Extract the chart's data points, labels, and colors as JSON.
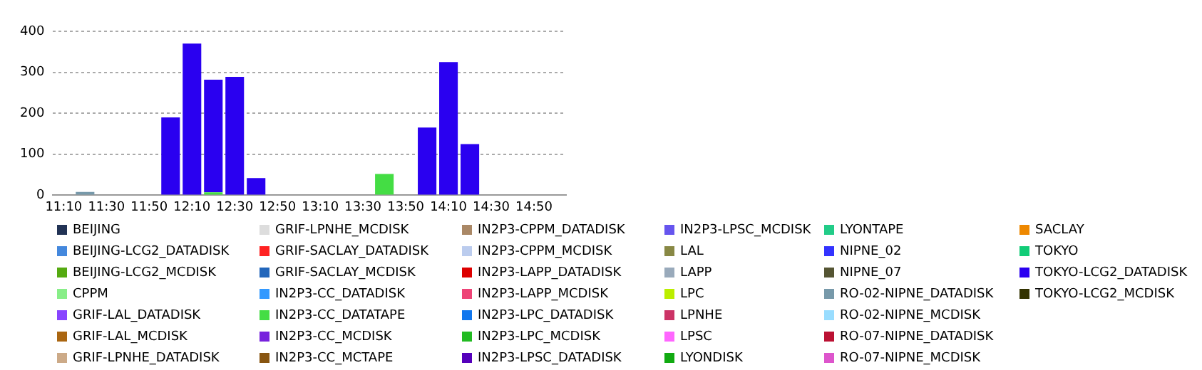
{
  "chart_data": {
    "type": "bar",
    "stacked": true,
    "grid": "y",
    "legend": "bottom",
    "categories": [
      "11:10",
      null,
      "11:30",
      null,
      "11:50",
      null,
      "12:10",
      null,
      "12:30",
      null,
      "12:50",
      null,
      "13:10",
      null,
      "13:30",
      null,
      "13:50",
      null,
      "14:10",
      null,
      "14:30",
      null,
      "14:50",
      null
    ],
    "ylim": [
      0,
      400
    ],
    "yticks": [
      0,
      100,
      200,
      300,
      400
    ],
    "series": [
      {
        "name": "BEIJING",
        "color": "#223355",
        "values": [
          0,
          0,
          0,
          0,
          0,
          0,
          0,
          0,
          0,
          0,
          0,
          0,
          0,
          0,
          0,
          0,
          0,
          0,
          0,
          0,
          0,
          0,
          0,
          0
        ]
      },
      {
        "name": "BEIJING-LCG2_DATADISK",
        "color": "#4488dd",
        "values": [
          0,
          0,
          0,
          0,
          0,
          0,
          0,
          0,
          0,
          0,
          0,
          0,
          0,
          0,
          0,
          0,
          0,
          0,
          0,
          0,
          0,
          0,
          0,
          0
        ]
      },
      {
        "name": "BEIJING-LCG2_MCDISK",
        "color": "#55aa11",
        "values": [
          0,
          0,
          0,
          0,
          0,
          0,
          0,
          0,
          0,
          0,
          0,
          0,
          0,
          0,
          0,
          0,
          0,
          0,
          0,
          0,
          0,
          0,
          0,
          0
        ]
      },
      {
        "name": "CPPM",
        "color": "#88ee88",
        "values": [
          0,
          0,
          0,
          0,
          0,
          0,
          0,
          0,
          0,
          0,
          0,
          0,
          0,
          0,
          0,
          0,
          0,
          0,
          0,
          0,
          0,
          0,
          0,
          0
        ]
      },
      {
        "name": "GRIF-LAL_DATADISK",
        "color": "#8844ff",
        "values": [
          0,
          0,
          0,
          0,
          0,
          0,
          0,
          0,
          0,
          0,
          0,
          0,
          0,
          0,
          0,
          0,
          0,
          0,
          0,
          0,
          0,
          0,
          0,
          0
        ]
      },
      {
        "name": "GRIF-LAL_MCDISK",
        "color": "#aa6611",
        "values": [
          0,
          0,
          0,
          0,
          0,
          0,
          0,
          0,
          0,
          0,
          0,
          0,
          0,
          0,
          0,
          0,
          0,
          0,
          0,
          0,
          0,
          0,
          0,
          0
        ]
      },
      {
        "name": "GRIF-LPNHE_DATADISK",
        "color": "#ccaa88",
        "values": [
          0,
          0,
          0,
          0,
          0,
          0,
          0,
          0,
          0,
          0,
          0,
          0,
          0,
          0,
          0,
          0,
          0,
          0,
          0,
          0,
          0,
          0,
          0,
          0
        ]
      },
      {
        "name": "GRIF-LPNHE_MCDISK",
        "color": "#dddddd",
        "values": [
          0,
          0,
          0,
          0,
          0,
          0,
          0,
          0,
          0,
          0,
          0,
          0,
          0,
          0,
          0,
          0,
          0,
          0,
          0,
          0,
          0,
          0,
          0,
          0
        ]
      },
      {
        "name": "GRIF-SACLAY_DATADISK",
        "color": "#ff2222",
        "values": [
          0,
          0,
          0,
          0,
          0,
          0,
          0,
          0,
          0,
          0,
          0,
          0,
          0,
          0,
          0,
          0,
          0,
          0,
          0,
          0,
          0,
          0,
          0,
          0
        ]
      },
      {
        "name": "GRIF-SACLAY_MCDISK",
        "color": "#2266bb",
        "values": [
          0,
          0,
          0,
          0,
          0,
          0,
          0,
          0,
          0,
          0,
          0,
          0,
          0,
          0,
          0,
          0,
          0,
          0,
          0,
          0,
          0,
          0,
          0,
          0
        ]
      },
      {
        "name": "IN2P3-CC_DATADISK",
        "color": "#3399ff",
        "values": [
          0,
          0,
          0,
          0,
          0,
          0,
          0,
          0,
          0,
          0,
          0,
          0,
          0,
          0,
          0,
          0,
          0,
          0,
          0,
          0,
          0,
          0,
          0,
          0
        ]
      },
      {
        "name": "IN2P3-CC_DATATAPE",
        "color": "#44dd44",
        "values": [
          0,
          0,
          0,
          0,
          0,
          0,
          0,
          7,
          0,
          0,
          0,
          0,
          0,
          0,
          0,
          52,
          0,
          0,
          0,
          0,
          0,
          0,
          0,
          0
        ]
      },
      {
        "name": "IN2P3-CC_MCDISK",
        "color": "#7722dd",
        "values": [
          0,
          0,
          0,
          0,
          0,
          0,
          0,
          0,
          0,
          0,
          0,
          0,
          0,
          0,
          0,
          0,
          0,
          0,
          0,
          0,
          0,
          0,
          0,
          0
        ]
      },
      {
        "name": "IN2P3-CC_MCTAPE",
        "color": "#885511",
        "values": [
          0,
          0,
          0,
          0,
          0,
          0,
          0,
          0,
          0,
          0,
          0,
          0,
          0,
          0,
          0,
          0,
          0,
          0,
          0,
          0,
          0,
          0,
          0,
          0
        ]
      },
      {
        "name": "IN2P3-CPPM_DATADISK",
        "color": "#aa8866",
        "values": [
          0,
          0,
          0,
          0,
          0,
          0,
          0,
          0,
          0,
          0,
          0,
          0,
          0,
          0,
          0,
          0,
          0,
          0,
          0,
          0,
          0,
          0,
          0,
          0
        ]
      },
      {
        "name": "IN2P3-CPPM_MCDISK",
        "color": "#bbccee",
        "values": [
          0,
          0,
          0,
          0,
          0,
          0,
          0,
          0,
          0,
          0,
          0,
          0,
          0,
          0,
          0,
          0,
          0,
          0,
          0,
          0,
          0,
          0,
          0,
          0
        ]
      },
      {
        "name": "IN2P3-LAPP_DATADISK",
        "color": "#dd0000",
        "values": [
          0,
          0,
          0,
          0,
          0,
          0,
          0,
          0,
          0,
          0,
          0,
          0,
          0,
          0,
          0,
          0,
          0,
          0,
          0,
          0,
          0,
          0,
          0,
          0
        ]
      },
      {
        "name": "IN2P3-LAPP_MCDISK",
        "color": "#ee4477",
        "values": [
          0,
          0,
          0,
          0,
          0,
          0,
          0,
          0,
          0,
          0,
          0,
          0,
          0,
          0,
          0,
          0,
          0,
          0,
          0,
          0,
          0,
          0,
          0,
          0
        ]
      },
      {
        "name": "IN2P3-LPC_DATADISK",
        "color": "#1177ee",
        "values": [
          0,
          0,
          0,
          0,
          0,
          0,
          0,
          0,
          0,
          0,
          0,
          0,
          0,
          0,
          0,
          0,
          0,
          0,
          0,
          0,
          0,
          0,
          0,
          0
        ]
      },
      {
        "name": "IN2P3-LPC_MCDISK",
        "color": "#22bb22",
        "values": [
          0,
          0,
          0,
          0,
          0,
          0,
          0,
          0,
          0,
          0,
          0,
          0,
          0,
          0,
          0,
          0,
          0,
          0,
          0,
          0,
          0,
          0,
          0,
          0
        ]
      },
      {
        "name": "IN2P3-LPSC_DATADISK",
        "color": "#5500bb",
        "values": [
          0,
          0,
          0,
          0,
          0,
          0,
          0,
          0,
          0,
          0,
          0,
          0,
          0,
          0,
          0,
          0,
          0,
          0,
          0,
          0,
          0,
          0,
          0,
          0
        ]
      },
      {
        "name": "IN2P3-LPSC_MCDISK",
        "color": "#6655ee",
        "values": [
          0,
          0,
          0,
          0,
          0,
          0,
          0,
          0,
          0,
          0,
          0,
          0,
          0,
          0,
          0,
          0,
          0,
          0,
          0,
          0,
          0,
          0,
          0,
          0
        ]
      },
      {
        "name": "LAL",
        "color": "#888844",
        "values": [
          0,
          0,
          0,
          0,
          0,
          0,
          0,
          0,
          0,
          0,
          0,
          0,
          0,
          0,
          0,
          0,
          0,
          0,
          0,
          0,
          0,
          0,
          0,
          0
        ]
      },
      {
        "name": "LAPP",
        "color": "#99aabb",
        "values": [
          0,
          0,
          0,
          0,
          0,
          0,
          0,
          0,
          0,
          0,
          0,
          0,
          0,
          0,
          0,
          0,
          0,
          0,
          0,
          0,
          0,
          0,
          0,
          0
        ]
      },
      {
        "name": "LPC",
        "color": "#bbee00",
        "values": [
          0,
          0,
          0,
          0,
          0,
          0,
          0,
          0,
          0,
          0,
          0,
          0,
          0,
          0,
          0,
          0,
          0,
          0,
          0,
          0,
          0,
          0,
          0,
          0
        ]
      },
      {
        "name": "LPNHE",
        "color": "#cc3366",
        "values": [
          0,
          0,
          0,
          0,
          0,
          0,
          0,
          0,
          0,
          0,
          0,
          0,
          0,
          0,
          0,
          0,
          0,
          0,
          0,
          0,
          0,
          0,
          0,
          0
        ]
      },
      {
        "name": "LPSC",
        "color": "#ff66ff",
        "values": [
          0,
          0,
          0,
          0,
          0,
          0,
          0,
          0,
          0,
          0,
          0,
          0,
          0,
          0,
          0,
          0,
          0,
          0,
          0,
          0,
          0,
          0,
          0,
          0
        ]
      },
      {
        "name": "LYONDISK",
        "color": "#11aa11",
        "values": [
          0,
          0,
          0,
          0,
          0,
          0,
          0,
          0,
          0,
          0,
          0,
          0,
          0,
          0,
          0,
          0,
          0,
          0,
          0,
          0,
          0,
          0,
          0,
          0
        ]
      },
      {
        "name": "LYONTAPE",
        "color": "#22cc88",
        "values": [
          0,
          0,
          0,
          0,
          0,
          0,
          0,
          0,
          0,
          0,
          0,
          0,
          0,
          0,
          0,
          0,
          0,
          0,
          0,
          0,
          0,
          0,
          0,
          0
        ]
      },
      {
        "name": "NIPNE_02",
        "color": "#3333ff",
        "values": [
          0,
          0,
          0,
          0,
          0,
          0,
          0,
          0,
          0,
          0,
          0,
          0,
          0,
          0,
          0,
          0,
          0,
          0,
          0,
          0,
          0,
          0,
          0,
          0
        ]
      },
      {
        "name": "NIPNE_07",
        "color": "#555533",
        "values": [
          0,
          0,
          0,
          0,
          0,
          0,
          0,
          0,
          0,
          0,
          0,
          0,
          0,
          0,
          0,
          0,
          0,
          0,
          0,
          0,
          0,
          0,
          0,
          0
        ]
      },
      {
        "name": "RO-02-NIPNE_DATADISK",
        "color": "#7799aa",
        "values": [
          0,
          8,
          0,
          0,
          0,
          0,
          0,
          0,
          0,
          0,
          0,
          0,
          0,
          0,
          0,
          0,
          0,
          0,
          0,
          0,
          0,
          0,
          0,
          0
        ]
      },
      {
        "name": "RO-02-NIPNE_MCDISK",
        "color": "#99ddff",
        "values": [
          0,
          0,
          0,
          0,
          0,
          0,
          0,
          0,
          0,
          0,
          0,
          0,
          0,
          0,
          0,
          0,
          0,
          0,
          0,
          0,
          0,
          0,
          0,
          0
        ]
      },
      {
        "name": "RO-07-NIPNE_DATADISK",
        "color": "#bb1133",
        "values": [
          0,
          0,
          0,
          0,
          0,
          0,
          0,
          0,
          0,
          0,
          0,
          0,
          0,
          0,
          0,
          0,
          0,
          0,
          0,
          0,
          0,
          0,
          0,
          0
        ]
      },
      {
        "name": "RO-07-NIPNE_MCDISK",
        "color": "#dd55cc",
        "values": [
          0,
          0,
          0,
          0,
          0,
          0,
          0,
          0,
          0,
          0,
          0,
          0,
          0,
          0,
          0,
          0,
          0,
          0,
          0,
          0,
          0,
          0,
          0,
          0
        ]
      },
      {
        "name": "SACLAY",
        "color": "#ee8800",
        "values": [
          0,
          0,
          0,
          0,
          0,
          0,
          0,
          0,
          0,
          0,
          0,
          0,
          0,
          0,
          0,
          0,
          0,
          0,
          0,
          0,
          0,
          0,
          0,
          0
        ]
      },
      {
        "name": "TOKYO",
        "color": "#11cc77",
        "values": [
          0,
          0,
          0,
          0,
          0,
          0,
          0,
          0,
          0,
          0,
          0,
          0,
          0,
          0,
          0,
          0,
          0,
          0,
          0,
          0,
          0,
          0,
          0,
          0
        ]
      },
      {
        "name": "TOKYO-LCG2_DATADISK",
        "color": "#2a00f0",
        "values": [
          0,
          0,
          0,
          0,
          0,
          190,
          370,
          275,
          289,
          42,
          0,
          0,
          0,
          0,
          0,
          0,
          0,
          165,
          325,
          125,
          0,
          0,
          0,
          0
        ]
      },
      {
        "name": "TOKYO-LCG2_MCDISK",
        "color": "#333300",
        "values": [
          0,
          0,
          0,
          0,
          0,
          0,
          0,
          0,
          0,
          0,
          0,
          0,
          0,
          0,
          0,
          0,
          0,
          0,
          0,
          0,
          0,
          0,
          0,
          0
        ]
      }
    ]
  }
}
